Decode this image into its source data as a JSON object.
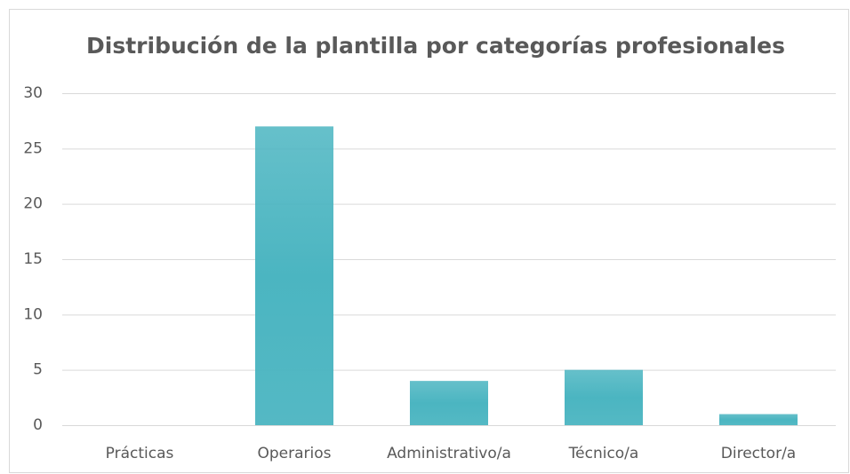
{
  "chart_data": {
    "type": "bar",
    "title": "Distribución de la plantilla por categorías profesionales",
    "categories": [
      "Prácticas",
      "Operarios",
      "Administrativo/a",
      "Técnico/a",
      "Director/a"
    ],
    "values": [
      0,
      27,
      4,
      5,
      1
    ],
    "color": "#4bb5c1",
    "ylim": [
      0,
      30
    ],
    "yticks": [
      0,
      5,
      10,
      15,
      20,
      25,
      30
    ],
    "grid": true
  }
}
